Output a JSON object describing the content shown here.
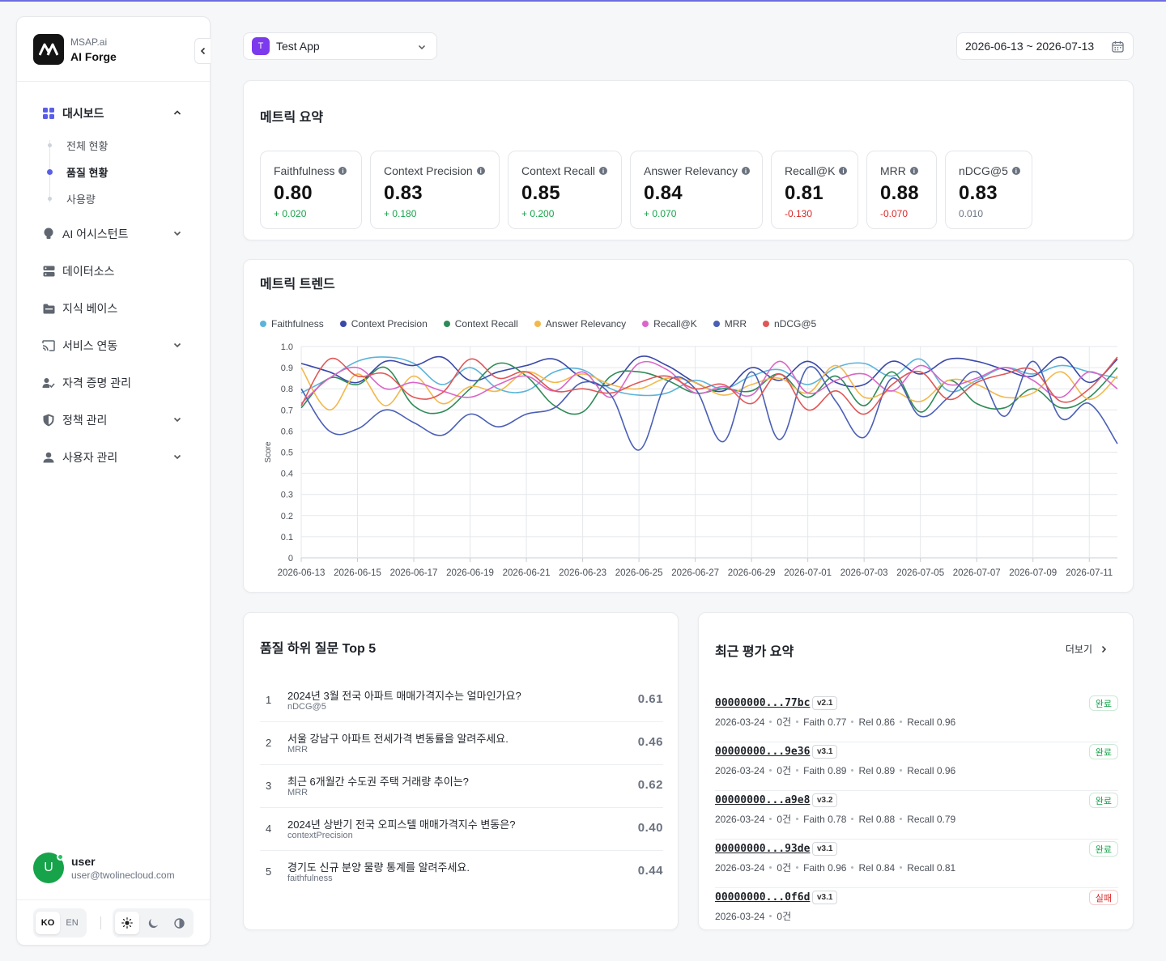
{
  "brand": {
    "sub": "MSAP.ai",
    "name": "AI Forge"
  },
  "sidebar": {
    "items": [
      {
        "label": "대시보드",
        "icon": "grid-icon",
        "expanded": true,
        "children": [
          {
            "label": "전체 현황"
          },
          {
            "label": "품질 현황",
            "active": true
          },
          {
            "label": "사용량"
          }
        ]
      },
      {
        "label": "AI 어시스턴트",
        "icon": "bulb-icon",
        "hasChevron": true
      },
      {
        "label": "데이터소스",
        "icon": "database-icon"
      },
      {
        "label": "지식 베이스",
        "icon": "folder-icon"
      },
      {
        "label": "서비스 연동",
        "icon": "cast-icon",
        "hasChevron": true
      },
      {
        "label": "자격 증명 관리",
        "icon": "user-check-icon"
      },
      {
        "label": "정책 관리",
        "icon": "shield-icon",
        "hasChevron": true
      },
      {
        "label": "사용자 관리",
        "icon": "user-icon",
        "hasChevron": true
      }
    ]
  },
  "user": {
    "initial": "U",
    "name": "user",
    "email": "user@twolinecloud.com"
  },
  "lang": {
    "ko": "KO",
    "en": "EN"
  },
  "app_select": {
    "badge": "T",
    "name": "Test App"
  },
  "date_range": "2026-06-13 ~ 2026-07-13",
  "summary": {
    "title": "메트릭 요약",
    "metrics": [
      {
        "name": "Faithfulness",
        "value": "0.80",
        "delta": "+ 0.020",
        "trend": "pos"
      },
      {
        "name": "Context Precision",
        "value": "0.83",
        "delta": "+ 0.180",
        "trend": "pos"
      },
      {
        "name": "Context Recall",
        "value": "0.85",
        "delta": "+ 0.200",
        "trend": "pos"
      },
      {
        "name": "Answer Relevancy",
        "value": "0.84",
        "delta": "+ 0.070",
        "trend": "pos"
      },
      {
        "name": "Recall@K",
        "value": "0.81",
        "delta": "-0.130",
        "trend": "neg"
      },
      {
        "name": "MRR",
        "value": "0.88",
        "delta": "-0.070",
        "trend": "neg"
      },
      {
        "name": "nDCG@5",
        "value": "0.83",
        "delta": "0.010",
        "trend": "neu"
      }
    ]
  },
  "trend": {
    "title": "메트릭 트렌드"
  },
  "chart_data": {
    "type": "line",
    "ylabel": "Score",
    "ylim": [
      0,
      1
    ],
    "yticks": [
      "0",
      "0.1",
      "0.2",
      "0.3",
      "0.4",
      "0.5",
      "0.6",
      "0.7",
      "0.8",
      "0.9",
      "1.0"
    ],
    "x": [
      "2026-06-13",
      "2026-06-14",
      "2026-06-15",
      "2026-06-16",
      "2026-06-17",
      "2026-06-18",
      "2026-06-19",
      "2026-06-20",
      "2026-06-21",
      "2026-06-22",
      "2026-06-23",
      "2026-06-24",
      "2026-06-25",
      "2026-06-26",
      "2026-06-27",
      "2026-06-28",
      "2026-06-29",
      "2026-06-30",
      "2026-07-01",
      "2026-07-02",
      "2026-07-03",
      "2026-07-04",
      "2026-07-05",
      "2026-07-06",
      "2026-07-07",
      "2026-07-08",
      "2026-07-09",
      "2026-07-10",
      "2026-07-11",
      "2026-07-12"
    ],
    "xtick_labels": [
      "2026-06-13",
      "2026-06-15",
      "2026-06-17",
      "2026-06-19",
      "2026-06-21",
      "2026-06-23",
      "2026-06-25",
      "2026-06-27",
      "2026-06-29",
      "2026-07-01",
      "2026-07-03",
      "2026-07-05",
      "2026-07-07",
      "2026-07-09",
      "2026-07-11"
    ],
    "legend_position": "top-left",
    "grid": true,
    "series": [
      {
        "name": "Faithfulness",
        "color": "#5ab4d9",
        "values": [
          0.78,
          0.85,
          0.93,
          0.95,
          0.92,
          0.82,
          0.9,
          0.8,
          0.79,
          0.88,
          0.89,
          0.8,
          0.77,
          0.78,
          0.84,
          0.8,
          0.86,
          0.89,
          0.82,
          0.9,
          0.92,
          0.86,
          0.94,
          0.79,
          0.84,
          0.9,
          0.87,
          0.91,
          0.88,
          0.85
        ]
      },
      {
        "name": "Context Precision",
        "color": "#3a48a8",
        "values": [
          0.92,
          0.88,
          0.83,
          0.93,
          0.91,
          0.95,
          0.84,
          0.88,
          0.91,
          0.94,
          0.85,
          0.82,
          0.95,
          0.91,
          0.83,
          0.79,
          0.9,
          0.84,
          0.93,
          0.83,
          0.82,
          0.93,
          0.87,
          0.94,
          0.93,
          0.89,
          0.86,
          0.95,
          0.83,
          0.94
        ]
      },
      {
        "name": "Context Recall",
        "color": "#2e8b57",
        "values": [
          0.71,
          0.85,
          0.82,
          0.9,
          0.72,
          0.69,
          0.8,
          0.92,
          0.86,
          0.72,
          0.69,
          0.86,
          0.88,
          0.84,
          0.78,
          0.8,
          0.79,
          0.87,
          0.76,
          0.86,
          0.72,
          0.88,
          0.69,
          0.84,
          0.73,
          0.71,
          0.8,
          0.71,
          0.76,
          0.9
        ]
      },
      {
        "name": "Answer Relevancy",
        "color": "#f2b84b",
        "values": [
          0.9,
          0.7,
          0.87,
          0.72,
          0.86,
          0.73,
          0.81,
          0.79,
          0.88,
          0.83,
          0.87,
          0.82,
          0.8,
          0.85,
          0.83,
          0.77,
          0.82,
          0.85,
          0.78,
          0.91,
          0.76,
          0.79,
          0.74,
          0.84,
          0.82,
          0.76,
          0.78,
          0.88,
          0.75,
          0.86
        ]
      },
      {
        "name": "Recall@K",
        "color": "#d966c8",
        "values": [
          0.73,
          0.85,
          0.9,
          0.8,
          0.83,
          0.79,
          0.76,
          0.82,
          0.86,
          0.79,
          0.88,
          0.76,
          0.92,
          0.89,
          0.78,
          0.81,
          0.77,
          0.93,
          0.78,
          0.84,
          0.87,
          0.79,
          0.91,
          0.82,
          0.85,
          0.9,
          0.84,
          0.76,
          0.88,
          0.8
        ]
      },
      {
        "name": "MRR",
        "color": "#4a5fb5",
        "values": [
          0.8,
          0.6,
          0.61,
          0.7,
          0.64,
          0.58,
          0.68,
          0.62,
          0.68,
          0.71,
          0.83,
          0.77,
          0.51,
          0.83,
          0.8,
          0.55,
          0.88,
          0.56,
          0.9,
          0.74,
          0.57,
          0.85,
          0.67,
          0.76,
          0.88,
          0.67,
          0.93,
          0.66,
          0.73,
          0.54
        ]
      },
      {
        "name": "nDCG@5",
        "color": "#e05757",
        "values": [
          0.72,
          0.94,
          0.86,
          0.87,
          0.76,
          0.78,
          0.94,
          0.85,
          0.88,
          0.79,
          0.8,
          0.78,
          0.83,
          0.86,
          0.8,
          0.82,
          0.73,
          0.87,
          0.7,
          0.79,
          0.68,
          0.82,
          0.88,
          0.75,
          0.83,
          0.87,
          0.89,
          0.74,
          0.8,
          0.95
        ]
      }
    ]
  },
  "bottom_questions": {
    "title": "품질 하위 질문 Top 5",
    "rows": [
      {
        "rank": "1",
        "text": "2024년 3월 전국 아파트 매매가격지수는 얼마인가요?",
        "metric": "nDCG@5",
        "score": "0.61"
      },
      {
        "rank": "2",
        "text": "서울 강남구 아파트 전세가격 변동률을 알려주세요.",
        "metric": "MRR",
        "score": "0.46"
      },
      {
        "rank": "3",
        "text": "최근 6개월간 수도권 주택 거래량 추이는?",
        "metric": "MRR",
        "score": "0.62"
      },
      {
        "rank": "4",
        "text": "2024년 상반기 전국 오피스텔 매매가격지수 변동은?",
        "metric": "contextPrecision",
        "score": "0.40"
      },
      {
        "rank": "5",
        "text": "경기도 신규 분양 물량 통계를 알려주세요.",
        "metric": "faithfulness",
        "score": "0.44"
      }
    ]
  },
  "recent_evals": {
    "title": "최근 평가 요약",
    "more": "더보기",
    "rows": [
      {
        "id": "00000000...77bc",
        "version": "v2.1",
        "status": "완료",
        "state": "ok",
        "date": "2026-03-24",
        "count": "0건",
        "faith": "Faith 0.77",
        "rel": "Rel 0.86",
        "recall": "Recall 0.96"
      },
      {
        "id": "00000000...9e36",
        "version": "v3.1",
        "status": "완료",
        "state": "ok",
        "date": "2026-03-24",
        "count": "0건",
        "faith": "Faith 0.89",
        "rel": "Rel 0.89",
        "recall": "Recall 0.96"
      },
      {
        "id": "00000000...a9e8",
        "version": "v3.2",
        "status": "완료",
        "state": "ok",
        "date": "2026-03-24",
        "count": "0건",
        "faith": "Faith 0.78",
        "rel": "Rel 0.88",
        "recall": "Recall 0.79"
      },
      {
        "id": "00000000...93de",
        "version": "v3.1",
        "status": "완료",
        "state": "ok",
        "date": "2026-03-24",
        "count": "0건",
        "faith": "Faith 0.96",
        "rel": "Rel 0.84",
        "recall": "Recall 0.81"
      },
      {
        "id": "00000000...0f6d",
        "version": "v3.1",
        "status": "실패",
        "state": "fail",
        "date": "2026-03-24",
        "count": "0건",
        "faith": "",
        "rel": "",
        "recall": ""
      }
    ]
  }
}
